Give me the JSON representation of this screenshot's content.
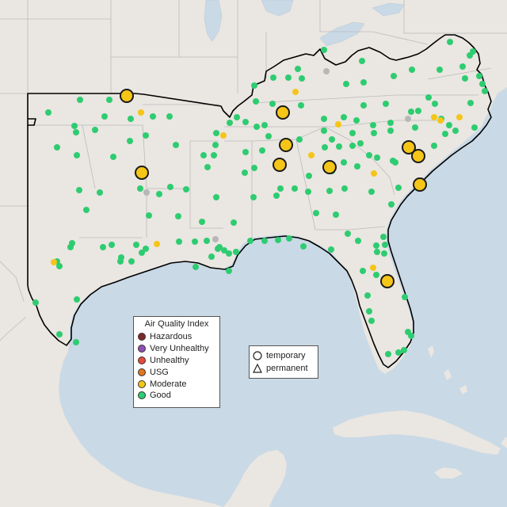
{
  "legend": {
    "title": "Air Quality Index",
    "items": [
      {
        "label": "Hazardous",
        "color": "#7e2a2a"
      },
      {
        "label": "Very Unhealthy",
        "color": "#8f4fb6"
      },
      {
        "label": "Unhealthy",
        "color": "#e8493a"
      },
      {
        "label": "USG",
        "color": "#e0781e"
      },
      {
        "label": "Moderate",
        "color": "#f5c518"
      },
      {
        "label": "Good",
        "color": "#2ecc71"
      }
    ]
  },
  "type_legend": {
    "items": [
      {
        "label": "temporary",
        "shape": "circle"
      },
      {
        "label": "permanent",
        "shape": "triangle"
      }
    ]
  },
  "colors": {
    "water": "#c9d9e6",
    "land": "#eae6e1",
    "good": "#2ecc71",
    "moderate": "#f5c518",
    "no_data": "#b7b7b7"
  },
  "monitors": {
    "large_moderate": [
      [
        160,
        121
      ],
      [
        357,
        142
      ],
      [
        361,
        183
      ],
      [
        353,
        208
      ],
      [
        179,
        218
      ],
      [
        416,
        211
      ],
      [
        516,
        186
      ],
      [
        528,
        197
      ],
      [
        530,
        233
      ],
      [
        489,
        355
      ]
    ],
    "small_moderate": [
      [
        178,
        142
      ],
      [
        282,
        171
      ],
      [
        373,
        116
      ],
      [
        427,
        157
      ],
      [
        393,
        196
      ],
      [
        472,
        219
      ],
      [
        471,
        338
      ],
      [
        198,
        308
      ],
      [
        68,
        331
      ],
      [
        548,
        148
      ],
      [
        556,
        152
      ],
      [
        580,
        148
      ]
    ],
    "no_data": [
      [
        412,
        90
      ],
      [
        185,
        243
      ],
      [
        272,
        302
      ],
      [
        515,
        150
      ]
    ],
    "good": [
      [
        409,
        63
      ],
      [
        457,
        77
      ],
      [
        568,
        53
      ],
      [
        597,
        65
      ],
      [
        593,
        70
      ],
      [
        376,
        87
      ],
      [
        345,
        98
      ],
      [
        364,
        98
      ],
      [
        321,
        108
      ],
      [
        437,
        106
      ],
      [
        459,
        104
      ],
      [
        497,
        96
      ],
      [
        520,
        88
      ],
      [
        555,
        88
      ],
      [
        584,
        84
      ],
      [
        605,
        96
      ],
      [
        609,
        106
      ],
      [
        612,
        115
      ],
      [
        381,
        99
      ],
      [
        323,
        128
      ],
      [
        344,
        131
      ],
      [
        380,
        133
      ],
      [
        459,
        133
      ],
      [
        487,
        131
      ],
      [
        541,
        123
      ],
      [
        587,
        99
      ],
      [
        594,
        130
      ],
      [
        101,
        126
      ],
      [
        138,
        126
      ],
      [
        61,
        142
      ],
      [
        132,
        147
      ],
      [
        165,
        150
      ],
      [
        193,
        147
      ],
      [
        214,
        147
      ],
      [
        299,
        148
      ],
      [
        273,
        168
      ],
      [
        272,
        183
      ],
      [
        290,
        155
      ],
      [
        310,
        154
      ],
      [
        334,
        158
      ],
      [
        409,
        150
      ],
      [
        434,
        148
      ],
      [
        450,
        152
      ],
      [
        471,
        158
      ],
      [
        493,
        155
      ],
      [
        519,
        141
      ],
      [
        528,
        140
      ],
      [
        549,
        131
      ],
      [
        557,
        150
      ],
      [
        567,
        158
      ],
      [
        575,
        165
      ],
      [
        599,
        161
      ],
      [
        524,
        161
      ],
      [
        493,
        165
      ],
      [
        472,
        168
      ],
      [
        445,
        168
      ],
      [
        409,
        165
      ],
      [
        410,
        186
      ],
      [
        419,
        176
      ],
      [
        428,
        185
      ],
      [
        378,
        176
      ],
      [
        339,
        172
      ],
      [
        324,
        160
      ],
      [
        94,
        159
      ],
      [
        96,
        167
      ],
      [
        120,
        164
      ],
      [
        164,
        178
      ],
      [
        184,
        171
      ],
      [
        222,
        183
      ],
      [
        72,
        186
      ],
      [
        97,
        196
      ],
      [
        143,
        198
      ],
      [
        257,
        196
      ],
      [
        270,
        196
      ],
      [
        310,
        192
      ],
      [
        331,
        190
      ],
      [
        309,
        218
      ],
      [
        321,
        212
      ],
      [
        262,
        211
      ],
      [
        445,
        184
      ],
      [
        455,
        181
      ],
      [
        466,
        196
      ],
      [
        476,
        199
      ],
      [
        496,
        203
      ],
      [
        499,
        205
      ],
      [
        562,
        169
      ],
      [
        548,
        184
      ],
      [
        434,
        205
      ],
      [
        451,
        210
      ],
      [
        419,
        216
      ],
      [
        390,
        222
      ],
      [
        100,
        240
      ],
      [
        126,
        243
      ],
      [
        201,
        245
      ],
      [
        177,
        238
      ],
      [
        215,
        236
      ],
      [
        235,
        239
      ],
      [
        273,
        249
      ],
      [
        320,
        249
      ],
      [
        349,
        247
      ],
      [
        354,
        238
      ],
      [
        372,
        238
      ],
      [
        389,
        242
      ],
      [
        416,
        241
      ],
      [
        435,
        238
      ],
      [
        469,
        242
      ],
      [
        503,
        237
      ],
      [
        494,
        258
      ],
      [
        188,
        272
      ],
      [
        225,
        273
      ],
      [
        255,
        280
      ],
      [
        295,
        281
      ],
      [
        399,
        269
      ],
      [
        424,
        271
      ],
      [
        109,
        265
      ],
      [
        91,
        307
      ],
      [
        89,
        312
      ],
      [
        130,
        312
      ],
      [
        141,
        309
      ],
      [
        172,
        309
      ],
      [
        184,
        314
      ],
      [
        179,
        319
      ],
      [
        153,
        325
      ],
      [
        152,
        330
      ],
      [
        166,
        330
      ],
      [
        226,
        305
      ],
      [
        246,
        305
      ],
      [
        261,
        304
      ],
      [
        277,
        312
      ],
      [
        289,
        320
      ],
      [
        298,
        318
      ],
      [
        316,
        304
      ],
      [
        334,
        304
      ],
      [
        351,
        303
      ],
      [
        365,
        301
      ],
      [
        383,
        311
      ],
      [
        418,
        315
      ],
      [
        439,
        295
      ],
      [
        452,
        304
      ],
      [
        484,
        299
      ],
      [
        486,
        309
      ],
      [
        485,
        320
      ],
      [
        289,
        342
      ],
      [
        267,
        324
      ],
      [
        275,
        314
      ],
      [
        475,
        347
      ],
      [
        458,
        342
      ],
      [
        476,
        318
      ],
      [
        464,
        373
      ],
      [
        511,
        375
      ],
      [
        515,
        419
      ],
      [
        519,
        424
      ],
      [
        466,
        393
      ],
      [
        469,
        405
      ],
      [
        490,
        447
      ],
      [
        503,
        445
      ],
      [
        510,
        442
      ],
      [
        75,
        336
      ],
      [
        72,
        330
      ],
      [
        45,
        382
      ],
      [
        97,
        378
      ],
      [
        75,
        422
      ],
      [
        96,
        432
      ],
      [
        475,
        310
      ],
      [
        247,
        337
      ],
      [
        283,
        316
      ]
    ]
  }
}
